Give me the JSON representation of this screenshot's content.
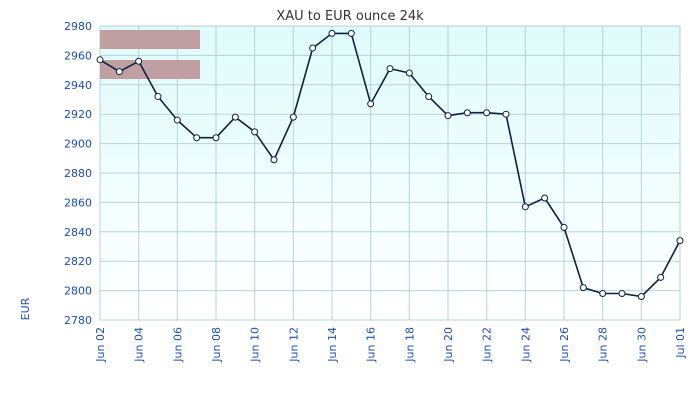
{
  "chart_data": {
    "type": "line",
    "title": "XAU to EUR ounce 24k",
    "ylabel": "EUR",
    "xlabel": "",
    "ylim": [
      2780,
      2980
    ],
    "yticks": [
      2780,
      2800,
      2820,
      2840,
      2860,
      2880,
      2900,
      2920,
      2940,
      2960,
      2980
    ],
    "xtick_labels": [
      "Jun 02",
      "Jun 04",
      "Jun 06",
      "Jun 08",
      "Jun 10",
      "Jun 12",
      "Jun 14",
      "Jun 16",
      "Jun 18",
      "Jun 20",
      "Jun 22",
      "Jun 24",
      "Jun 26",
      "Jun 28",
      "Jun 30",
      "Jul 01"
    ],
    "x": [
      "Jun 02",
      "Jun 03",
      "Jun 04",
      "Jun 05",
      "Jun 06",
      "Jun 07",
      "Jun 08",
      "Jun 09",
      "Jun 10",
      "Jun 11",
      "Jun 12",
      "Jun 13",
      "Jun 14",
      "Jun 15",
      "Jun 16",
      "Jun 17",
      "Jun 18",
      "Jun 19",
      "Jun 20",
      "Jun 21",
      "Jun 22",
      "Jun 23",
      "Jun 24",
      "Jun 25",
      "Jun 26",
      "Jun 27",
      "Jun 28",
      "Jun 29",
      "Jun 30",
      "Jun 31",
      "Jul 01"
    ],
    "series": [
      {
        "values": [
          2957,
          2949,
          2956,
          2932,
          2916,
          2904,
          2904,
          2918,
          2908,
          2889,
          2918,
          2965,
          2975,
          2975,
          2927,
          2951,
          2948,
          2932,
          2919,
          2921,
          2921,
          2920,
          2857,
          2863,
          2843,
          2802,
          2798,
          2798,
          2796,
          2809,
          2834
        ],
        "color": "#0d2240"
      }
    ],
    "grid": true,
    "legend": "top-left",
    "colors": {
      "plot_bg_top": "#dffbfb",
      "plot_bg_bottom": "#ffffff",
      "grid": "#b9d3d6",
      "legend_swatch": "#c09fa2",
      "marker_fill": "#ffffff",
      "axis_text": "#1f4fa8"
    }
  }
}
